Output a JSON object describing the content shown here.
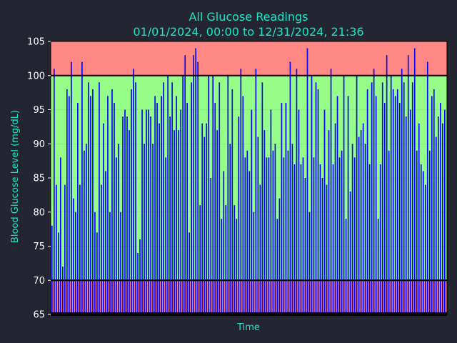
{
  "colors": {
    "background": "#232630",
    "text_accent": "#1de5c8",
    "tick_text": "#ffffff",
    "high_zone": "#ff8884",
    "normal_zone": "#96fd88",
    "low_zone": "#ff8884",
    "bars": "#0000ff",
    "threshold_line": "#000000",
    "grid": "#aaaaaa"
  },
  "chart_data": {
    "type": "bar",
    "title": "All Glucose Readings",
    "subtitle": "01/01/2024, 00:00 to 12/31/2024, 21:36",
    "xlabel": "Time",
    "ylabel": "Blood Glucose Level (mg/dL)",
    "ylim": [
      65,
      105
    ],
    "yticks": [
      "65",
      "70",
      "75",
      "80",
      "85",
      "90",
      "95",
      "100",
      "105"
    ],
    "x_tick_labels": false,
    "grid": true,
    "zones": [
      {
        "name": "high",
        "from": 100,
        "to": 105,
        "color": "#ff8884"
      },
      {
        "name": "normal",
        "from": 70,
        "to": 100,
        "color": "#96fd88"
      },
      {
        "name": "low",
        "from": 65,
        "to": 70,
        "color": "#ff8884"
      }
    ],
    "threshold_lines": [
      70,
      100
    ],
    "x_start": "01/01/2024, 00:00",
    "x_end": "12/31/2024, 21:36",
    "values": [
      78,
      101,
      84,
      77,
      88,
      72,
      84,
      98,
      97,
      102,
      82,
      80,
      96,
      84,
      102,
      89,
      90,
      99,
      97,
      98,
      80,
      77,
      99,
      84,
      93,
      86,
      97,
      80,
      98,
      96,
      88,
      90,
      80,
      94,
      95,
      94,
      92,
      98,
      101,
      99,
      74,
      76,
      95,
      90,
      95,
      95,
      94,
      90,
      97,
      96,
      93,
      97,
      99,
      88,
      100,
      94,
      99,
      92,
      97,
      92,
      95,
      100,
      103,
      96,
      77,
      99,
      103,
      104,
      102,
      81,
      93,
      91,
      93,
      100,
      85,
      100,
      96,
      92,
      99,
      79,
      86,
      81,
      100,
      90,
      98,
      81,
      79,
      94,
      101,
      97,
      88,
      89,
      86,
      95,
      80,
      101,
      91,
      84,
      99,
      92,
      88,
      88,
      95,
      89,
      90,
      79,
      82,
      96,
      88,
      96,
      89,
      102,
      90,
      87,
      101,
      95,
      87,
      88,
      85,
      104,
      80,
      100,
      88,
      99,
      98,
      87,
      85,
      95,
      84,
      92,
      101,
      87,
      93,
      97,
      88,
      89,
      100,
      79,
      97,
      83,
      90,
      88,
      100,
      91,
      92,
      93,
      90,
      98,
      87,
      99,
      101,
      97,
      79,
      87,
      99,
      96,
      103,
      89,
      100,
      98,
      97,
      98,
      96,
      101,
      99,
      94,
      103,
      95,
      99,
      104,
      89,
      93,
      87,
      86,
      84,
      102,
      89,
      97,
      98,
      91,
      94,
      96,
      93,
      95
    ]
  }
}
